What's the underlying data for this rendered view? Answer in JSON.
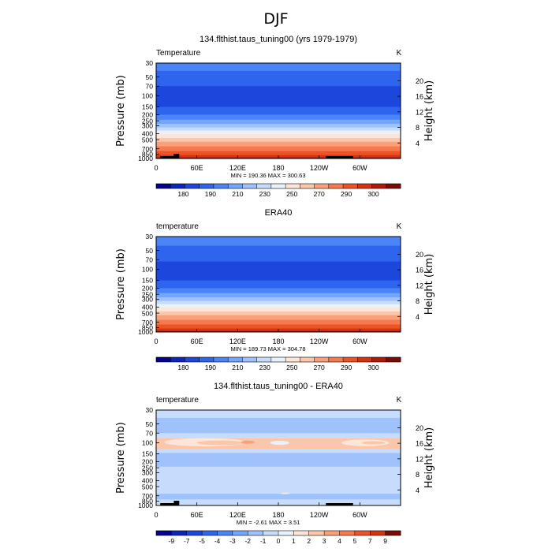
{
  "title": "DJF",
  "panels": [
    {
      "title": "134.flthist.taus_tuning00 (yrs 1979-1979)",
      "var_label": "Temperature",
      "units": "K",
      "ylabel": "Pressure (mb)",
      "ylabel_right": "Height (km)",
      "pressure_ticks": [
        "30",
        "50",
        "70",
        "100",
        "150",
        "200",
        "250",
        "300",
        "400",
        "500",
        "700",
        "850",
        "1000"
      ],
      "height_ticks": [
        "20",
        "16",
        "12",
        "8",
        "4"
      ],
      "lon_ticks": [
        "0",
        "60E",
        "120E",
        "180",
        "120W",
        "60W"
      ],
      "stats": "MIN = 190.36   MAX = 300.63",
      "colorbar_labels": [
        "180",
        "190",
        "210",
        "230",
        "250",
        "270",
        "290",
        "300"
      ],
      "colorbar_colors": [
        "#07018f",
        "#0c26bd",
        "#1d46dc",
        "#2f64ee",
        "#4a84f7",
        "#73a5fb",
        "#9fc2fc",
        "#c7dcfd",
        "#e9f1fd",
        "#fde6d7",
        "#fcc6aa",
        "#f9a07b",
        "#f57a4f",
        "#ec5428",
        "#d63310",
        "#b01a06",
        "#7d0b03"
      ],
      "bands": [
        {
          "p": 30,
          "c": "#4a84f7"
        },
        {
          "p": 40,
          "c": "#2f64ee"
        },
        {
          "p": 70,
          "c": "#1d46dc"
        },
        {
          "p": 150,
          "c": "#2f64ee"
        },
        {
          "p": 200,
          "c": "#4a84f7"
        },
        {
          "p": 240,
          "c": "#73a5fb"
        },
        {
          "p": 280,
          "c": "#9fc2fc"
        },
        {
          "p": 320,
          "c": "#c7dcfd"
        },
        {
          "p": 360,
          "c": "#e9f1fd"
        },
        {
          "p": 410,
          "c": "#fde6d7"
        },
        {
          "p": 470,
          "c": "#fcc6aa"
        },
        {
          "p": 540,
          "c": "#f9a07b"
        },
        {
          "p": 640,
          "c": "#f57a4f"
        },
        {
          "p": 760,
          "c": "#ec5428"
        },
        {
          "p": 880,
          "c": "#d63310"
        },
        {
          "p": 960,
          "c": "#b01a06"
        }
      ]
    },
    {
      "title": "ERA40",
      "var_label": "temperature",
      "units": "K",
      "ylabel": "Pressure (mb)",
      "ylabel_right": "Height (km)",
      "pressure_ticks": [
        "30",
        "50",
        "70",
        "100",
        "150",
        "200",
        "250",
        "300",
        "400",
        "500",
        "700",
        "850",
        "1000"
      ],
      "height_ticks": [
        "20",
        "16",
        "12",
        "8",
        "4"
      ],
      "lon_ticks": [
        "0",
        "60E",
        "120E",
        "180",
        "120W",
        "60W"
      ],
      "stats": "MIN = 189.73   MAX = 304.78",
      "colorbar_labels": [
        "180",
        "190",
        "210",
        "230",
        "250",
        "270",
        "290",
        "300"
      ],
      "colorbar_colors": [
        "#07018f",
        "#0c26bd",
        "#1d46dc",
        "#2f64ee",
        "#4a84f7",
        "#73a5fb",
        "#9fc2fc",
        "#c7dcfd",
        "#e9f1fd",
        "#fde6d7",
        "#fcc6aa",
        "#f9a07b",
        "#f57a4f",
        "#ec5428",
        "#d63310",
        "#b01a06",
        "#7d0b03"
      ],
      "bands": [
        {
          "p": 30,
          "c": "#4a84f7"
        },
        {
          "p": 42,
          "c": "#2f64ee"
        },
        {
          "p": 75,
          "c": "#1d46dc"
        },
        {
          "p": 150,
          "c": "#2f64ee"
        },
        {
          "p": 200,
          "c": "#4a84f7"
        },
        {
          "p": 240,
          "c": "#73a5fb"
        },
        {
          "p": 280,
          "c": "#9fc2fc"
        },
        {
          "p": 320,
          "c": "#c7dcfd"
        },
        {
          "p": 360,
          "c": "#e9f1fd"
        },
        {
          "p": 410,
          "c": "#fde6d7"
        },
        {
          "p": 470,
          "c": "#fcc6aa"
        },
        {
          "p": 540,
          "c": "#f9a07b"
        },
        {
          "p": 640,
          "c": "#f57a4f"
        },
        {
          "p": 760,
          "c": "#ec5428"
        },
        {
          "p": 880,
          "c": "#d63310"
        },
        {
          "p": 960,
          "c": "#b01a06"
        }
      ]
    },
    {
      "title": "134.flthist.taus_tuning00 - ERA40",
      "var_label": "temperature",
      "units": "K",
      "ylabel": "Pressure (mb)",
      "ylabel_right": "Height (km)",
      "pressure_ticks": [
        "30",
        "50",
        "70",
        "100",
        "150",
        "200",
        "250",
        "300",
        "400",
        "500",
        "700",
        "850",
        "1000"
      ],
      "height_ticks": [
        "20",
        "16",
        "12",
        "8",
        "4"
      ],
      "lon_ticks": [
        "0",
        "60E",
        "120E",
        "180",
        "120W",
        "60W"
      ],
      "stats": "MIN =   -2.61   MAX =    3.51",
      "colorbar_labels": [
        "-9",
        "-7",
        "-5",
        "-4",
        "-3",
        "-2",
        "-1",
        "0",
        "1",
        "2",
        "3",
        "4",
        "5",
        "7",
        "9"
      ],
      "colorbar_colors": [
        "#07018f",
        "#0c26bd",
        "#1d46dc",
        "#2f64ee",
        "#4a84f7",
        "#73a5fb",
        "#9fc2fc",
        "#c7dcfd",
        "#e9f1fd",
        "#fde6d7",
        "#fcc6aa",
        "#f9a07b",
        "#f57a4f",
        "#ec5428",
        "#d63310",
        "#7d0b03"
      ],
      "bands": [
        {
          "p": 30,
          "c": "#c7dcfd"
        },
        {
          "p": 40,
          "c": "#9fc2fc"
        },
        {
          "p": 70,
          "c": "#c7dcfd"
        },
        {
          "p": 85,
          "c": "#fcc6aa"
        },
        {
          "p": 125,
          "c": "#c7dcfd"
        },
        {
          "p": 145,
          "c": "#9fc2fc"
        },
        {
          "p": 240,
          "c": "#c7dcfd"
        },
        {
          "p": 650,
          "c": "#9fc2fc"
        },
        {
          "p": 800,
          "c": "#c7dcfd"
        }
      ],
      "blobs": [
        {
          "lon": 72,
          "p": 98,
          "wdeg": 120,
          "hp": 16,
          "c": "#fde6d7"
        },
        {
          "lon": 95,
          "p": 100,
          "wdeg": 70,
          "hp": 9,
          "c": "#fcc6aa"
        },
        {
          "lon": 135,
          "p": 98,
          "wdeg": 20,
          "hp": 6,
          "c": "#f9a07b"
        },
        {
          "lon": 182,
          "p": 100,
          "wdeg": 28,
          "hp": 8,
          "c": "#e9f1fd"
        },
        {
          "lon": 308,
          "p": 100,
          "wdeg": 70,
          "hp": 13,
          "c": "#fde6d7"
        },
        {
          "lon": 320,
          "p": 100,
          "wdeg": 35,
          "hp": 6,
          "c": "#fcc6aa"
        },
        {
          "lon": 150,
          "p": 400,
          "wdeg": 160,
          "hp": 120,
          "c": "#c7dcfd"
        },
        {
          "lon": 190,
          "p": 640,
          "wdeg": 14,
          "hp": 20,
          "c": "#fde6d7"
        }
      ]
    }
  ]
}
